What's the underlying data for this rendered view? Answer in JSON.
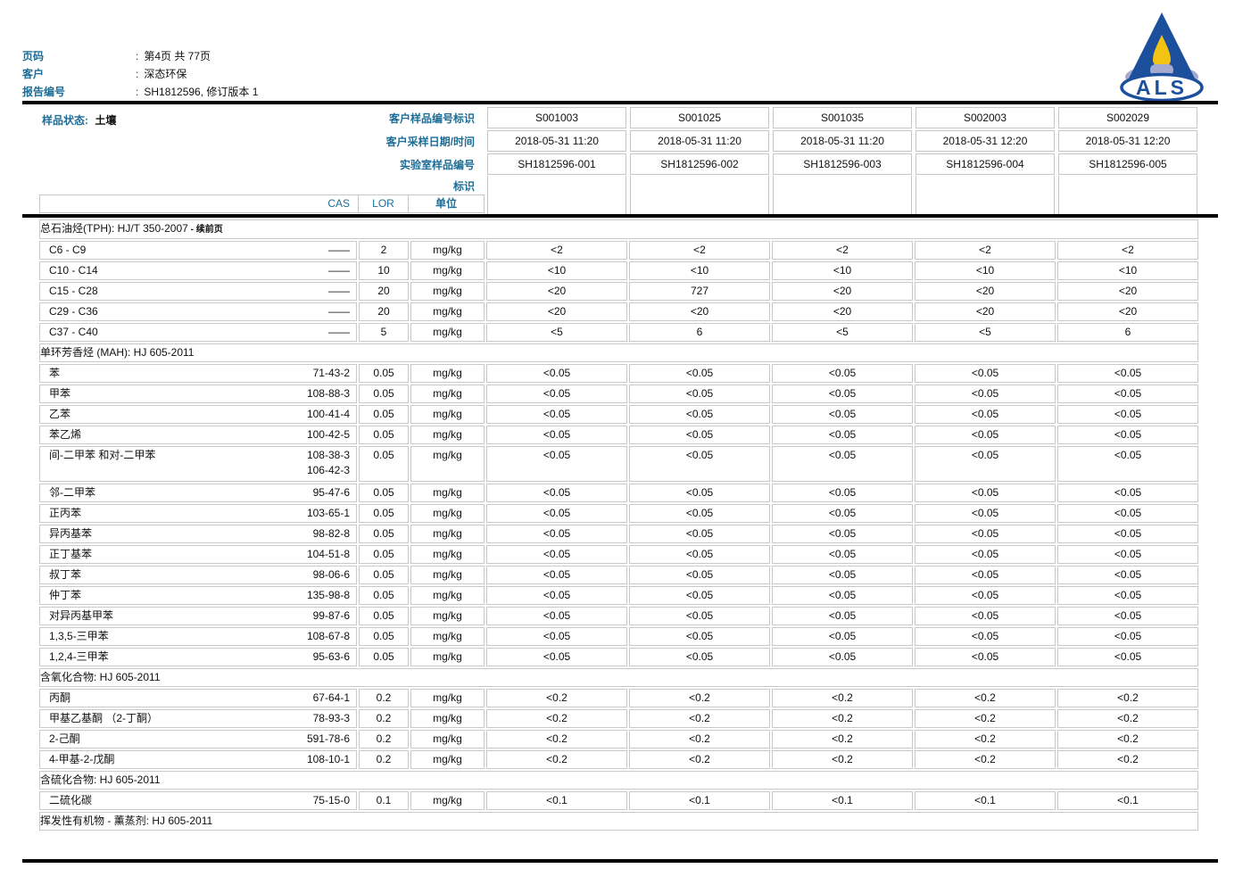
{
  "header": {
    "colon": ":",
    "rows": [
      {
        "label": "页码",
        "value": "第4页 共 77页"
      },
      {
        "label": "客户",
        "value": "深态环保"
      },
      {
        "label": "报告编号",
        "value": "SH1812596, 修订版本 1"
      }
    ]
  },
  "logo": {
    "text": "ALS"
  },
  "colors": {
    "accent_blue": "#1d6d96",
    "logo_blue": "#1c4f9c",
    "logo_yellow": "#f2c313",
    "logo_lavender": "#a5aad1",
    "section_bg": "#ededed",
    "table_border": "#c9c9c9"
  },
  "sample_header": {
    "state_label": "样品状态:",
    "state_value": "土壤",
    "row_labels": [
      "客户样品编号标识",
      "客户采样日期/时间",
      "实验室样品编号",
      "标识"
    ],
    "samples": [
      {
        "client_id": "S001003",
        "datetime": "2018-05-31 11:20",
        "lab_id": "SH1812596-001"
      },
      {
        "client_id": "S001025",
        "datetime": "2018-05-31 11:20",
        "lab_id": "SH1812596-002"
      },
      {
        "client_id": "S001035",
        "datetime": "2018-05-31 11:20",
        "lab_id": "SH1812596-003"
      },
      {
        "client_id": "S002003",
        "datetime": "2018-05-31 12:20",
        "lab_id": "SH1812596-004"
      },
      {
        "client_id": "S002029",
        "datetime": "2018-05-31 12:20",
        "lab_id": "SH1812596-005"
      }
    ]
  },
  "columns": {
    "cas": "CAS",
    "lor": "LOR",
    "unit": "单位"
  },
  "sections": [
    {
      "title": "总石油烃(TPH): HJ/T 350-2007",
      "suffix": "续前页",
      "rows": [
        {
          "name": "C6 - C9",
          "cas": "——",
          "lor": "2",
          "unit": "mg/kg",
          "values": [
            "<2",
            "<2",
            "<2",
            "<2",
            "<2"
          ]
        },
        {
          "name": "C10 - C14",
          "cas": "——",
          "lor": "10",
          "unit": "mg/kg",
          "values": [
            "<10",
            "<10",
            "<10",
            "<10",
            "<10"
          ]
        },
        {
          "name": "C15 - C28",
          "cas": "——",
          "lor": "20",
          "unit": "mg/kg",
          "values": [
            "<20",
            "727",
            "<20",
            "<20",
            "<20"
          ]
        },
        {
          "name": "C29 - C36",
          "cas": "——",
          "lor": "20",
          "unit": "mg/kg",
          "values": [
            "<20",
            "<20",
            "<20",
            "<20",
            "<20"
          ]
        },
        {
          "name": "C37 - C40",
          "cas": "——",
          "lor": "5",
          "unit": "mg/kg",
          "values": [
            "<5",
            "6",
            "<5",
            "<5",
            "6"
          ]
        }
      ]
    },
    {
      "title": "单环芳香烃 (MAH): HJ 605-2011",
      "rows": [
        {
          "name": "苯",
          "cas": "71-43-2",
          "lor": "0.05",
          "unit": "mg/kg",
          "values": [
            "<0.05",
            "<0.05",
            "<0.05",
            "<0.05",
            "<0.05"
          ]
        },
        {
          "name": "甲苯",
          "cas": "108-88-3",
          "lor": "0.05",
          "unit": "mg/kg",
          "values": [
            "<0.05",
            "<0.05",
            "<0.05",
            "<0.05",
            "<0.05"
          ]
        },
        {
          "name": "乙苯",
          "cas": "100-41-4",
          "lor": "0.05",
          "unit": "mg/kg",
          "values": [
            "<0.05",
            "<0.05",
            "<0.05",
            "<0.05",
            "<0.05"
          ]
        },
        {
          "name": "苯乙烯",
          "cas": "100-42-5",
          "lor": "0.05",
          "unit": "mg/kg",
          "values": [
            "<0.05",
            "<0.05",
            "<0.05",
            "<0.05",
            "<0.05"
          ]
        },
        {
          "name": "间-二甲苯 和对-二甲苯",
          "cas": "108-38-3",
          "cas2": "106-42-3",
          "lor": "0.05",
          "unit": "mg/kg",
          "values": [
            "<0.05",
            "<0.05",
            "<0.05",
            "<0.05",
            "<0.05"
          ]
        },
        {
          "name": "邻-二甲苯",
          "cas": "95-47-6",
          "lor": "0.05",
          "unit": "mg/kg",
          "values": [
            "<0.05",
            "<0.05",
            "<0.05",
            "<0.05",
            "<0.05"
          ]
        },
        {
          "name": "正丙苯",
          "cas": "103-65-1",
          "lor": "0.05",
          "unit": "mg/kg",
          "values": [
            "<0.05",
            "<0.05",
            "<0.05",
            "<0.05",
            "<0.05"
          ]
        },
        {
          "name": "异丙基苯",
          "cas": "98-82-8",
          "lor": "0.05",
          "unit": "mg/kg",
          "values": [
            "<0.05",
            "<0.05",
            "<0.05",
            "<0.05",
            "<0.05"
          ]
        },
        {
          "name": "正丁基苯",
          "cas": "104-51-8",
          "lor": "0.05",
          "unit": "mg/kg",
          "values": [
            "<0.05",
            "<0.05",
            "<0.05",
            "<0.05",
            "<0.05"
          ]
        },
        {
          "name": "叔丁苯",
          "cas": "98-06-6",
          "lor": "0.05",
          "unit": "mg/kg",
          "values": [
            "<0.05",
            "<0.05",
            "<0.05",
            "<0.05",
            "<0.05"
          ]
        },
        {
          "name": "仲丁苯",
          "cas": "135-98-8",
          "lor": "0.05",
          "unit": "mg/kg",
          "values": [
            "<0.05",
            "<0.05",
            "<0.05",
            "<0.05",
            "<0.05"
          ]
        },
        {
          "name": "对异丙基甲苯",
          "cas": "99-87-6",
          "lor": "0.05",
          "unit": "mg/kg",
          "values": [
            "<0.05",
            "<0.05",
            "<0.05",
            "<0.05",
            "<0.05"
          ]
        },
        {
          "name": "1,3,5-三甲苯",
          "cas": "108-67-8",
          "lor": "0.05",
          "unit": "mg/kg",
          "values": [
            "<0.05",
            "<0.05",
            "<0.05",
            "<0.05",
            "<0.05"
          ]
        },
        {
          "name": "1,2,4-三甲苯",
          "cas": "95-63-6",
          "lor": "0.05",
          "unit": "mg/kg",
          "values": [
            "<0.05",
            "<0.05",
            "<0.05",
            "<0.05",
            "<0.05"
          ]
        }
      ]
    },
    {
      "title": "含氧化合物: HJ 605-2011",
      "rows": [
        {
          "name": "丙酮",
          "cas": "67-64-1",
          "lor": "0.2",
          "unit": "mg/kg",
          "values": [
            "<0.2",
            "<0.2",
            "<0.2",
            "<0.2",
            "<0.2"
          ]
        },
        {
          "name": "甲基乙基酮 （2-丁酮）",
          "cas": "78-93-3",
          "lor": "0.2",
          "unit": "mg/kg",
          "values": [
            "<0.2",
            "<0.2",
            "<0.2",
            "<0.2",
            "<0.2"
          ]
        },
        {
          "name": "2-己酮",
          "cas": "591-78-6",
          "lor": "0.2",
          "unit": "mg/kg",
          "values": [
            "<0.2",
            "<0.2",
            "<0.2",
            "<0.2",
            "<0.2"
          ]
        },
        {
          "name": "4-甲基-2-戊酮",
          "cas": "108-10-1",
          "lor": "0.2",
          "unit": "mg/kg",
          "values": [
            "<0.2",
            "<0.2",
            "<0.2",
            "<0.2",
            "<0.2"
          ]
        }
      ]
    },
    {
      "title": "含硫化合物: HJ 605-2011",
      "rows": [
        {
          "name": "二硫化碳",
          "cas": "75-15-0",
          "lor": "0.1",
          "unit": "mg/kg",
          "values": [
            "<0.1",
            "<0.1",
            "<0.1",
            "<0.1",
            "<0.1"
          ]
        }
      ]
    },
    {
      "title": "挥发性有机物 - 薰蒸剂: HJ 605-2011",
      "rows": []
    }
  ]
}
